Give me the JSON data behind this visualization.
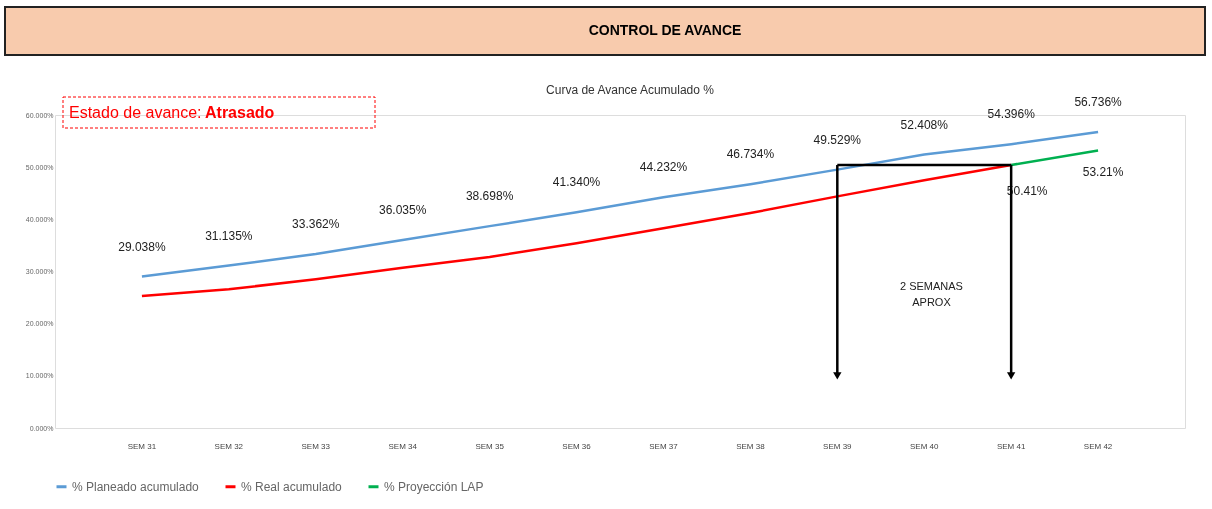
{
  "chart_data": {
    "type": "line",
    "title": "CONTROL DE AVANCE",
    "subtitle": "Curva de Avance Acumulado %",
    "categories": [
      "SEM 31",
      "SEM 32",
      "SEM 33",
      "SEM 34",
      "SEM 35",
      "SEM 36",
      "SEM 37",
      "SEM 38",
      "SEM 39",
      "SEM 40",
      "SEM 41",
      "SEM 42"
    ],
    "series": [
      {
        "name": "% Planeado acumulado",
        "color": "#5b9bd5",
        "values": [
          29.038,
          31.135,
          33.362,
          36.035,
          38.698,
          41.34,
          44.232,
          46.734,
          49.529,
          52.408,
          54.396,
          56.736
        ],
        "value_labels": [
          "29.038%",
          "31.135%",
          "33.362%",
          "36.035%",
          "38.698%",
          "41.340%",
          "44.232%",
          "46.734%",
          "49.529%",
          "52.408%",
          "54.396%",
          "56.736%"
        ]
      },
      {
        "name": "% Real acumulado",
        "color": "#ff0000",
        "values": [
          25.3,
          26.6,
          28.5,
          30.7,
          32.8,
          35.4,
          38.3,
          41.2,
          44.4,
          47.5,
          50.41,
          null
        ],
        "value_labels": [
          null,
          null,
          null,
          null,
          null,
          null,
          null,
          null,
          null,
          null,
          "50.41%",
          null
        ]
      },
      {
        "name": "% Proyección LAP",
        "color": "#00b050",
        "values": [
          null,
          null,
          null,
          null,
          null,
          null,
          null,
          null,
          null,
          null,
          50.41,
          53.21
        ],
        "value_labels": [
          null,
          null,
          null,
          null,
          null,
          null,
          null,
          null,
          null,
          null,
          null,
          "53.21%"
        ]
      },
      {
        "color": "#000000",
        "values": [
          null,
          null,
          null,
          null,
          null,
          null,
          null,
          null,
          50.41,
          50.41,
          50.41,
          null
        ]
      }
    ],
    "ylim": [
      0,
      60
    ],
    "yticks": [
      {
        "value": 0,
        "label": "0.000%"
      },
      {
        "value": 10,
        "label": "10.000%"
      },
      {
        "value": 20,
        "label": "20.000%"
      },
      {
        "value": 30,
        "label": "30.000%"
      },
      {
        "value": 40,
        "label": "40.000%"
      },
      {
        "value": 50,
        "label": "50.000%"
      },
      {
        "value": 60,
        "label": "60.000%"
      }
    ],
    "annotations": [
      "Estado de avance:",
      "Atrasado",
      "2 SEMANAS APROX"
    ],
    "grid": false,
    "legend": "bottom",
    "line_style": "solid",
    "marker": "none"
  }
}
